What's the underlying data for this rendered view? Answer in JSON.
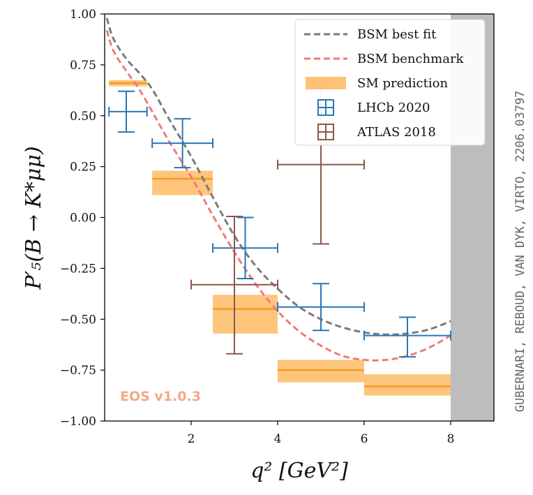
{
  "chart_data": {
    "type": "scatter",
    "xlabel": "q² [GeV²]",
    "ylabel": "P′₅(B → K*μμ)",
    "xlim": [
      0,
      9
    ],
    "ylim": [
      -1.0,
      1.0
    ],
    "xticks": [
      2,
      4,
      6,
      8
    ],
    "xtick_labels": [
      "2",
      "4",
      "6",
      "8"
    ],
    "yticks": [
      1.0,
      0.75,
      0.5,
      0.25,
      0.0,
      -0.25,
      -0.5,
      -0.75,
      -1.0
    ],
    "ytick_labels": [
      "1.00",
      "0.75",
      "0.50",
      "0.25",
      "0.00",
      "−0.25",
      "−0.50",
      "−0.75",
      "−1.00"
    ],
    "excluded_region": {
      "x0": 8,
      "x1": 9
    },
    "series": [
      {
        "name": "BSM best fit",
        "kind": "line",
        "color": "#7a7a7a",
        "x": [
          0.05,
          0.2,
          0.5,
          0.8,
          1.1,
          1.5,
          2.0,
          2.5,
          3.0,
          3.5,
          4.0,
          4.5,
          5.0,
          5.5,
          6.0,
          6.5,
          7.0,
          7.5,
          8.0
        ],
        "y": [
          0.98,
          0.88,
          0.78,
          0.71,
          0.63,
          0.48,
          0.3,
          0.1,
          -0.09,
          -0.24,
          -0.35,
          -0.44,
          -0.5,
          -0.54,
          -0.565,
          -0.575,
          -0.57,
          -0.55,
          -0.51
        ]
      },
      {
        "name": "BSM benchmark",
        "kind": "line",
        "color": "#f07a7a",
        "x": [
          0.05,
          0.2,
          0.5,
          0.8,
          1.1,
          1.5,
          2.0,
          2.5,
          3.0,
          3.5,
          4.0,
          4.5,
          5.0,
          5.5,
          6.0,
          6.5,
          7.0,
          7.5,
          8.0
        ],
        "y": [
          0.92,
          0.82,
          0.72,
          0.63,
          0.52,
          0.37,
          0.2,
          0.01,
          -0.17,
          -0.33,
          -0.46,
          -0.56,
          -0.63,
          -0.68,
          -0.7,
          -0.7,
          -0.68,
          -0.64,
          -0.58
        ]
      },
      {
        "name": "SM prediction",
        "kind": "band",
        "color": "#fdae49",
        "bins": [
          {
            "x0": 0.1,
            "x1": 0.98,
            "center": 0.66,
            "lo": 0.645,
            "hi": 0.675
          },
          {
            "x0": 1.1,
            "x1": 2.5,
            "center": 0.19,
            "lo": 0.11,
            "hi": 0.23
          },
          {
            "x0": 2.5,
            "x1": 4.0,
            "center": -0.45,
            "lo": -0.57,
            "hi": -0.38
          },
          {
            "x0": 4.0,
            "x1": 6.0,
            "center": -0.75,
            "lo": -0.81,
            "hi": -0.7
          },
          {
            "x0": 6.0,
            "x1": 8.0,
            "center": -0.83,
            "lo": -0.875,
            "hi": -0.77
          }
        ]
      },
      {
        "name": "LHCb 2020",
        "kind": "errorbar",
        "color": "#2a76b4",
        "points": [
          {
            "x": 0.5,
            "xlo": 0.1,
            "xhi": 0.98,
            "y": 0.52,
            "ylo": 0.42,
            "yhi": 0.62
          },
          {
            "x": 1.8,
            "xlo": 1.1,
            "xhi": 2.5,
            "y": 0.365,
            "ylo": 0.245,
            "yhi": 0.485
          },
          {
            "x": 3.25,
            "xlo": 2.5,
            "xhi": 4.0,
            "y": -0.15,
            "ylo": -0.3,
            "yhi": 0.0
          },
          {
            "x": 5.0,
            "xlo": 4.0,
            "xhi": 6.0,
            "y": -0.44,
            "ylo": -0.555,
            "yhi": -0.325
          },
          {
            "x": 7.0,
            "xlo": 6.0,
            "xhi": 8.0,
            "y": -0.58,
            "ylo": -0.685,
            "yhi": -0.49
          }
        ]
      },
      {
        "name": "ATLAS 2018",
        "kind": "errorbar",
        "color": "#8c564b",
        "points": [
          {
            "x": 3.0,
            "xlo": 2.0,
            "xhi": 4.0,
            "y": -0.33,
            "ylo": -0.67,
            "yhi": 0.005
          },
          {
            "x": 5.0,
            "xlo": 4.0,
            "xhi": 6.0,
            "y": 0.26,
            "ylo": -0.13,
            "yhi": 0.655
          }
        ]
      }
    ],
    "legend": {
      "position": "top-right",
      "entries": [
        "BSM best fit",
        "BSM benchmark",
        "SM prediction",
        "LHCb 2020",
        "ATLAS 2018"
      ]
    },
    "watermark": "EOS v1.0.3",
    "side_credit": "GUBERNARI, REBOUD, VAN DYK, VIRTO, 2206.03797"
  }
}
